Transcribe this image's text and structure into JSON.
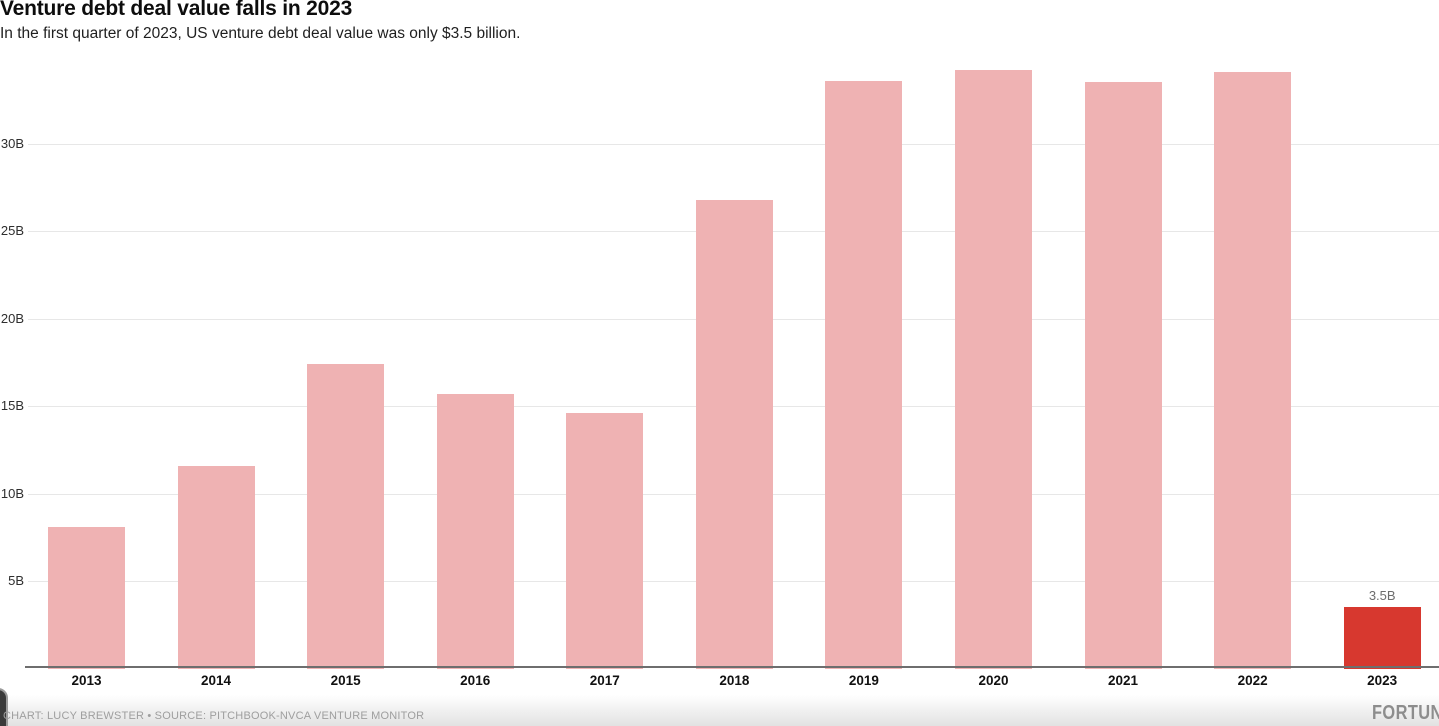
{
  "header": {
    "title": "Venture debt deal value falls in 2023",
    "subtitle": "In the first quarter of 2023, US venture debt deal value was only $3.5 billion."
  },
  "chart_data": {
    "type": "bar",
    "title": "Venture debt deal value falls in 2023",
    "subtitle": "In the first quarter of 2023, US venture debt deal value was only $3.5 billion.",
    "categories": [
      "2013",
      "2014",
      "2015",
      "2016",
      "2017",
      "2018",
      "2019",
      "2020",
      "2021",
      "2022",
      "2023"
    ],
    "values": [
      8.1,
      11.6,
      17.4,
      15.7,
      14.6,
      26.8,
      33.6,
      34.2,
      33.5,
      34.1,
      3.5
    ],
    "unit": "billion USD",
    "xlabel": "",
    "ylabel": "",
    "ylim": [
      0,
      35
    ],
    "ytick_values": [
      5,
      10,
      15,
      20,
      25,
      30
    ],
    "ytick_labels": [
      "5B",
      "10B",
      "15B",
      "20B",
      "25B",
      "30B"
    ],
    "grid": "horizontal",
    "legend": "none",
    "bar_color": "#efb2b3",
    "highlight": {
      "category": "2023",
      "color": "#d7382f",
      "value_label": "3.5B"
    }
  },
  "footer": {
    "credit": "CHART: LUCY BREWSTER • SOURCE: PITCHBOOK-NVCA VENTURE MONITOR",
    "logo": "FORTUNE"
  },
  "colors": {
    "bar_pink": "#efb2b3",
    "bar_red": "#d7382f",
    "gridline": "#e7e7e7",
    "axis": "#6e6e6e",
    "credit_text": "#9e9e9e"
  }
}
